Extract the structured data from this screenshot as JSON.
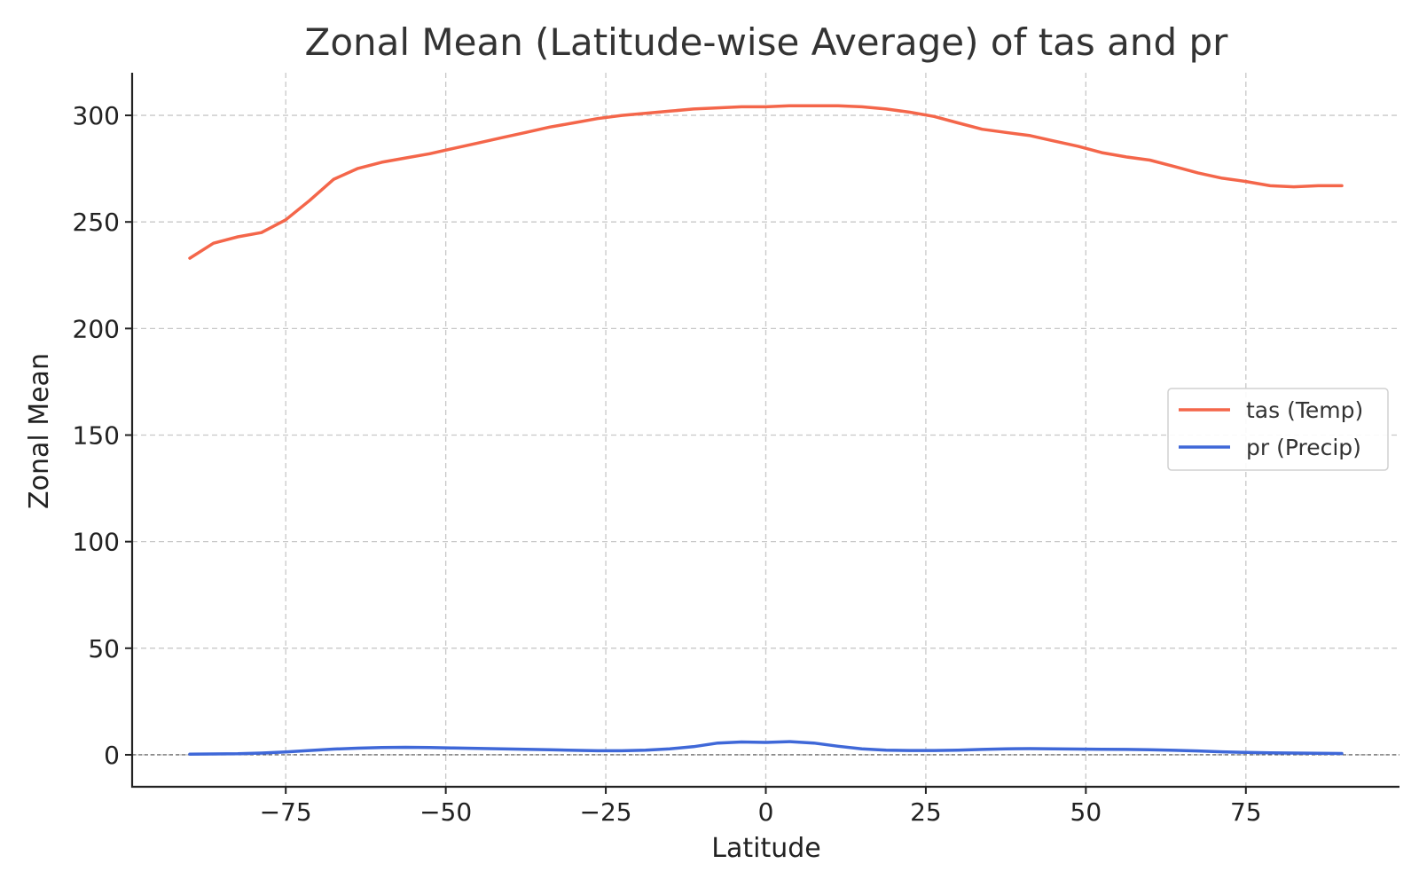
{
  "chart_data": {
    "type": "line",
    "title": "Zonal Mean (Latitude-wise Average) of tas and pr",
    "xlabel": "Latitude",
    "ylabel": "Zonal Mean",
    "xlim": [
      -99,
      99
    ],
    "ylim": [
      -15,
      320
    ],
    "xticks": [
      -75,
      -50,
      -25,
      0,
      25,
      50,
      75
    ],
    "xtick_labels": [
      "−75",
      "−50",
      "−25",
      "0",
      "25",
      "50",
      "75"
    ],
    "yticks": [
      0,
      50,
      100,
      150,
      200,
      250,
      300
    ],
    "ytick_labels": [
      "0",
      "50",
      "100",
      "150",
      "200",
      "250",
      "300"
    ],
    "grid": true,
    "zero_line": true,
    "legend": {
      "position": "center-right"
    },
    "series": [
      {
        "name": "tas (Temp)",
        "color": "#f4664a",
        "x": [
          -90,
          -86.3,
          -82.5,
          -78.8,
          -75,
          -71.3,
          -67.5,
          -63.8,
          -60,
          -56.3,
          -52.5,
          -48.8,
          -45,
          -41.3,
          -37.5,
          -33.8,
          -30,
          -26.3,
          -22.5,
          -18.8,
          -15,
          -11.3,
          -7.5,
          -3.8,
          0,
          3.8,
          7.5,
          11.3,
          15,
          18.8,
          22.5,
          26.3,
          30,
          33.8,
          37.5,
          41.3,
          45,
          48.8,
          52.5,
          56.3,
          60,
          63.8,
          67.5,
          71.3,
          75,
          78.8,
          82.5,
          86.3,
          90
        ],
        "y": [
          233,
          240,
          243,
          245,
          251,
          260,
          270,
          275,
          278,
          280,
          282,
          284.5,
          287,
          289.5,
          292,
          294.5,
          296.5,
          298.5,
          300,
          301,
          302,
          303,
          303.5,
          304,
          304,
          304.5,
          304.5,
          304.5,
          304,
          303,
          301.5,
          299.5,
          296.5,
          293.5,
          292,
          290.5,
          288,
          285.5,
          282.5,
          280.5,
          279,
          276,
          273,
          270.5,
          269,
          267,
          266.5,
          267,
          267
        ]
      },
      {
        "name": "pr (Precip)",
        "color": "#3f68d8",
        "x": [
          -90,
          -86.3,
          -82.5,
          -78.8,
          -75,
          -71.3,
          -67.5,
          -63.8,
          -60,
          -56.3,
          -52.5,
          -48.8,
          -45,
          -41.3,
          -37.5,
          -33.8,
          -30,
          -26.3,
          -22.5,
          -18.8,
          -15,
          -11.3,
          -7.5,
          -3.8,
          0,
          3.8,
          7.5,
          11.3,
          15,
          18.8,
          22.5,
          26.3,
          30,
          33.8,
          37.5,
          41.3,
          45,
          48.8,
          52.5,
          56.3,
          60,
          63.8,
          67.5,
          71.3,
          75,
          78.8,
          82.5,
          86.3,
          90
        ],
        "y": [
          0.3,
          0.4,
          0.5,
          0.8,
          1.3,
          2,
          2.7,
          3.1,
          3.4,
          3.5,
          3.4,
          3.2,
          3,
          2.8,
          2.6,
          2.4,
          2.1,
          1.9,
          1.9,
          2.2,
          2.8,
          3.8,
          5.5,
          6,
          5.8,
          6.2,
          5.5,
          4,
          2.8,
          2.2,
          2,
          2,
          2.2,
          2.5,
          2.8,
          2.9,
          2.8,
          2.7,
          2.6,
          2.5,
          2.4,
          2.1,
          1.8,
          1.4,
          1.1,
          0.9,
          0.8,
          0.7,
          0.6
        ]
      }
    ]
  }
}
